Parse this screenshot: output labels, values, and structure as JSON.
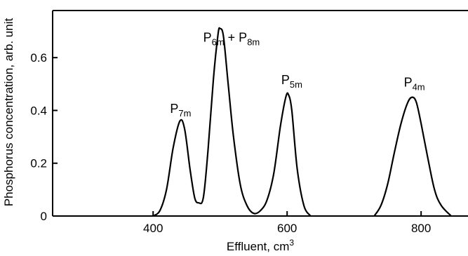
{
  "chart_data": {
    "type": "line",
    "xlabel": "Effluent, cm",
    "xlabel_sup": "3",
    "ylabel": "Phosphorus concentration, arb. unit",
    "xlim": [
      250,
      870
    ],
    "ylim": [
      0,
      0.72
    ],
    "x_ticks": [
      {
        "value": 400,
        "label": "400"
      },
      {
        "value": 600,
        "label": "600"
      },
      {
        "value": 800,
        "label": "800"
      }
    ],
    "y_ticks": [
      {
        "value": 0,
        "label": "0"
      },
      {
        "value": 0.2,
        "label": "0.2"
      },
      {
        "value": 0.4,
        "label": "0.4"
      },
      {
        "value": 0.6,
        "label": "0.6"
      }
    ],
    "grid": false,
    "series": [
      {
        "values": [
          [
            400,
            0
          ],
          [
            410,
            0.02
          ],
          [
            420,
            0.1
          ],
          [
            430,
            0.26
          ],
          [
            440,
            0.36
          ],
          [
            447,
            0.33
          ],
          [
            455,
            0.18
          ],
          [
            462,
            0.07
          ],
          [
            468,
            0.05
          ],
          [
            475,
            0.07
          ],
          [
            482,
            0.25
          ],
          [
            490,
            0.52
          ],
          [
            497,
            0.69
          ],
          [
            500,
            0.71
          ],
          [
            505,
            0.68
          ],
          [
            512,
            0.5
          ],
          [
            520,
            0.3
          ],
          [
            530,
            0.12
          ],
          [
            540,
            0.04
          ],
          [
            550,
            0.01
          ],
          [
            560,
            0.02
          ],
          [
            570,
            0.06
          ],
          [
            580,
            0.16
          ],
          [
            590,
            0.34
          ],
          [
            598,
            0.45
          ],
          [
            602,
            0.46
          ],
          [
            607,
            0.4
          ],
          [
            615,
            0.18
          ],
          [
            625,
            0.04
          ],
          [
            635,
            0
          ]
        ]
      },
      {
        "values": [
          [
            730,
            0
          ],
          [
            740,
            0.04
          ],
          [
            750,
            0.12
          ],
          [
            760,
            0.24
          ],
          [
            770,
            0.35
          ],
          [
            780,
            0.43
          ],
          [
            787,
            0.45
          ],
          [
            793,
            0.43
          ],
          [
            800,
            0.35
          ],
          [
            810,
            0.22
          ],
          [
            820,
            0.1
          ],
          [
            830,
            0.04
          ],
          [
            845,
            0
          ]
        ]
      }
    ],
    "annotations": [
      {
        "id": "p7m",
        "main": "P",
        "sub": "7m",
        "x": 441,
        "y": 0.39
      },
      {
        "id": "p6m8m",
        "main": "P",
        "sub": "6m",
        "mid": " + P",
        "sub2": "8m",
        "x": 517,
        "y": 0.66
      },
      {
        "id": "p5m",
        "main": "P",
        "sub": "5m",
        "x": 607,
        "y": 0.5
      },
      {
        "id": "p4m",
        "main": "P",
        "sub": "4m",
        "x": 790,
        "y": 0.49
      }
    ]
  }
}
